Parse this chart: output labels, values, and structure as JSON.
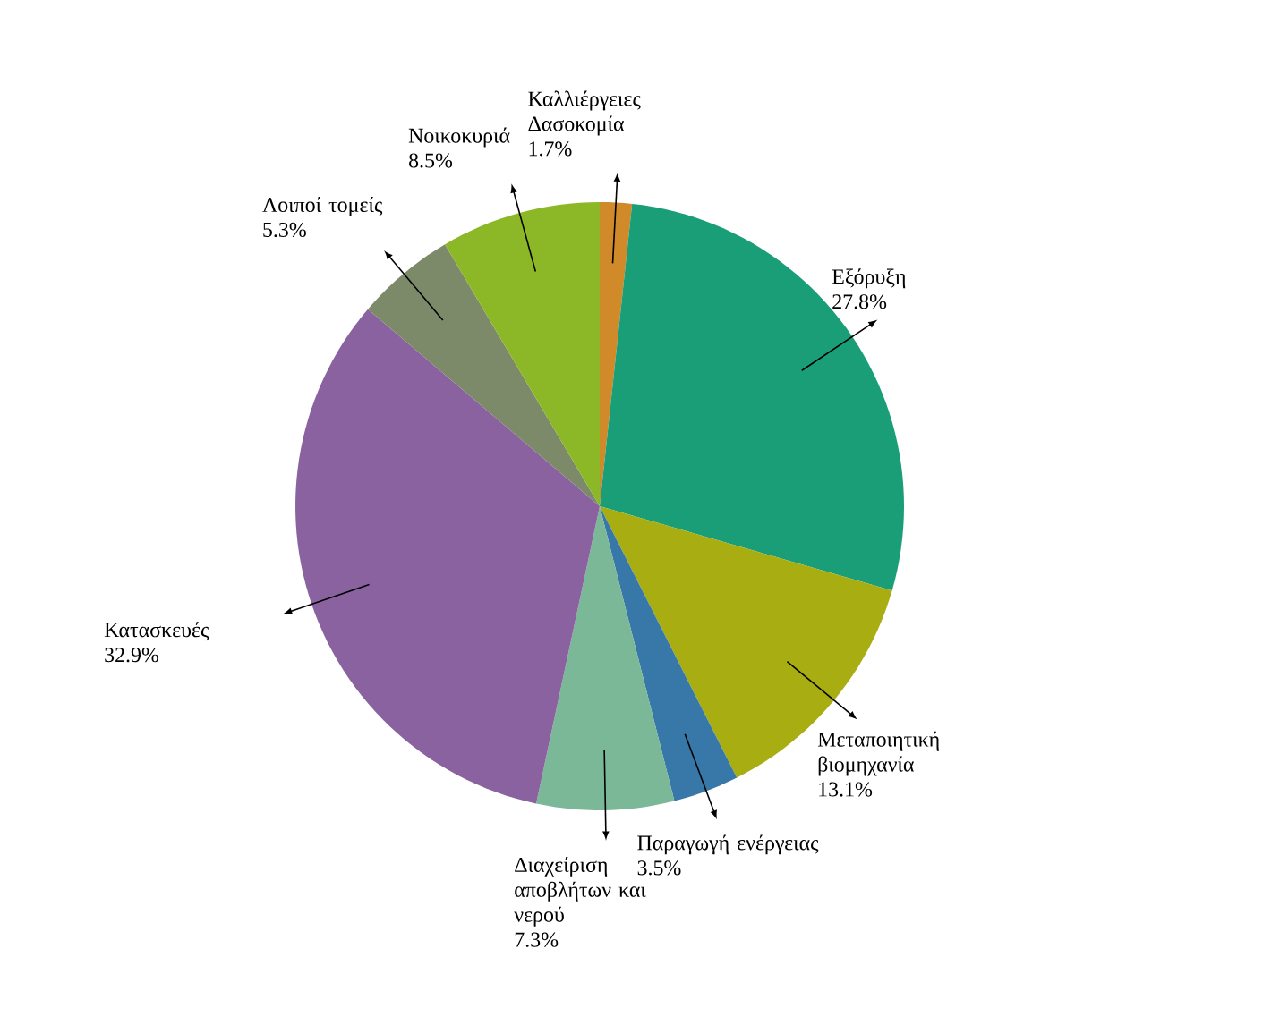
{
  "chart_data": {
    "type": "pie",
    "categories": [
      "Καλλιέργειες Δασοκομία",
      "Εξόρυξη",
      "Μεταποιητική βιομηχανία",
      "Παραγωγή ενέργειας",
      "Διαχείριση αποβλήτων και νερού",
      "Κατασκευές",
      "Λοιποί τομείς",
      "Νοικοκυριά"
    ],
    "values": [
      1.7,
      27.8,
      13.1,
      3.5,
      7.3,
      32.9,
      5.3,
      8.5
    ],
    "value_labels": [
      "1.7%",
      "27.8%",
      "13.1%",
      "3.5%",
      "7.3%",
      "32.9%",
      "5.3%",
      "8.5%"
    ],
    "colors": [
      "#d08a2a",
      "#1a9e78",
      "#a8ad12",
      "#3878a8",
      "#7ab898",
      "#8a62a0",
      "#7c8a6a",
      "#8cb828"
    ]
  }
}
